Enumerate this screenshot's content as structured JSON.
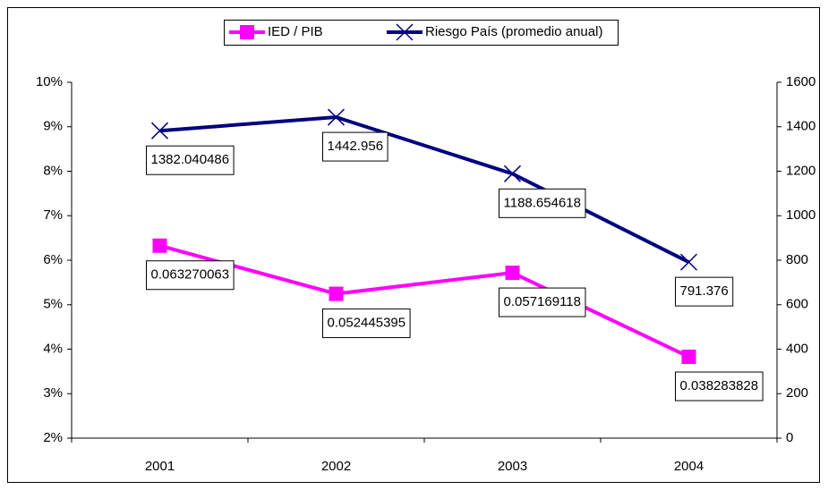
{
  "chart_data": {
    "type": "line",
    "categories": [
      "2001",
      "2002",
      "2003",
      "2004"
    ],
    "series": [
      {
        "name": "IED / PIB",
        "color": "#ff00ff",
        "marker": "square",
        "values": [
          0.063270063,
          0.052445395,
          0.057169118,
          0.038283828
        ]
      },
      {
        "name": "Riesgo País (promedio anual)",
        "color": "#000080",
        "marker": "x",
        "axis": "y2",
        "values": [
          1382.040486,
          1442.956,
          1188.654618,
          791.376
        ]
      }
    ],
    "ylim": [
      0.02,
      0.1
    ],
    "yticks": [
      {
        "value": 0.02,
        "label": "2%"
      },
      {
        "value": 0.03,
        "label": "3%"
      },
      {
        "value": 0.04,
        "label": "4%"
      },
      {
        "value": 0.05,
        "label": "5%"
      },
      {
        "value": 0.06,
        "label": "6%"
      },
      {
        "value": 0.07,
        "label": "7%"
      },
      {
        "value": 0.08,
        "label": "8%"
      },
      {
        "value": 0.09,
        "label": "9%"
      },
      {
        "value": 0.1,
        "label": "10%"
      }
    ],
    "y2lim": [
      0,
      1600
    ],
    "y2ticks": [
      0,
      200,
      400,
      600,
      800,
      1000,
      1200,
      1400,
      1600
    ],
    "legend": "top",
    "grid": false
  }
}
